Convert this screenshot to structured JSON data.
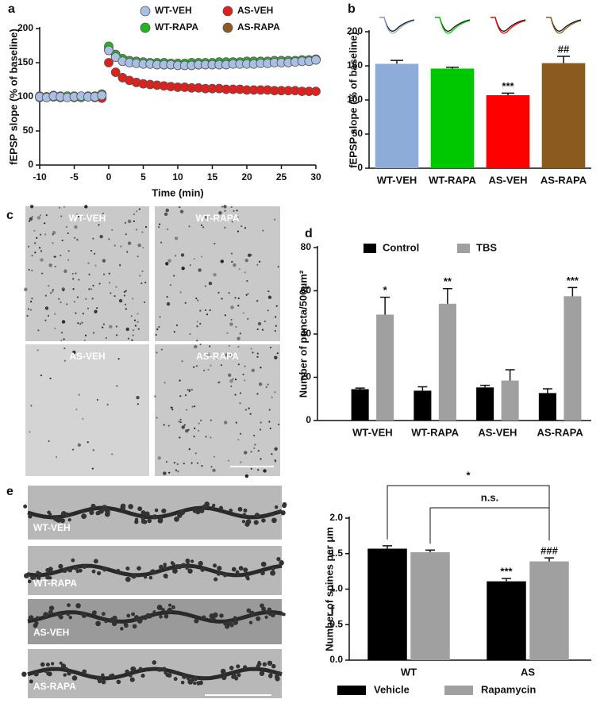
{
  "chart_data": [
    {
      "type": "scatter",
      "panel": "a",
      "xlabel": "Time (min)",
      "ylabel": "fEPSP slope (% of baseline)",
      "x": [
        -10,
        -9,
        -8,
        -7,
        -6,
        -5,
        -4,
        -3,
        -2,
        -1,
        0,
        1,
        2,
        3,
        4,
        5,
        6,
        7,
        8,
        9,
        10,
        11,
        12,
        13,
        14,
        15,
        16,
        17,
        18,
        19,
        20,
        21,
        22,
        23,
        24,
        25,
        26,
        27,
        28,
        29,
        30
      ],
      "xlim": [
        -10,
        30
      ],
      "xticks": [
        -10,
        -5,
        0,
        5,
        10,
        15,
        20,
        25,
        30
      ],
      "ylim": [
        0,
        200
      ],
      "yticks": [
        0,
        50,
        100,
        150,
        200
      ],
      "legend": "top",
      "series": [
        {
          "name": "WT-VEH",
          "color": "#a9bfe3",
          "values": [
            100,
            99,
            101,
            100,
            99,
            100,
            101,
            100,
            100,
            102,
            168,
            158,
            152,
            150,
            149,
            148,
            148,
            147,
            147,
            147,
            146,
            146,
            146,
            147,
            147,
            147,
            147,
            147,
            148,
            148,
            148,
            148,
            149,
            149,
            150,
            150,
            150,
            151,
            152,
            152,
            154
          ]
        },
        {
          "name": "WT-RAPA",
          "color": "#22b522",
          "values": [
            99,
            100,
            100,
            99,
            101,
            100,
            99,
            100,
            101,
            104,
            174,
            162,
            156,
            153,
            152,
            151,
            150,
            150,
            150,
            149,
            149,
            149,
            150,
            150,
            150,
            150,
            151,
            151,
            151,
            151,
            152,
            152,
            152,
            152,
            153,
            153,
            153,
            153,
            154,
            154,
            155
          ]
        },
        {
          "name": "AS-VEH",
          "color": "#e0201c",
          "values": [
            101,
            100,
            102,
            101,
            100,
            101,
            100,
            101,
            99,
            98,
            150,
            136,
            128,
            124,
            121,
            119,
            118,
            117,
            116,
            115,
            114,
            114,
            113,
            113,
            112,
            112,
            112,
            111,
            111,
            111,
            110,
            110,
            110,
            110,
            109,
            109,
            109,
            109,
            108,
            108,
            108
          ]
        },
        {
          "name": "AS-RAPA",
          "color": "#8c5a22",
          "values": [
            100,
            99,
            100,
            100,
            100,
            99,
            100,
            100,
            100,
            101,
            170,
            160,
            154,
            152,
            150,
            149,
            148,
            148,
            147,
            147,
            147,
            147,
            147,
            147,
            148,
            148,
            148,
            148,
            149,
            149,
            149,
            150,
            150,
            150,
            151,
            151,
            152,
            152,
            153,
            153,
            155
          ]
        }
      ]
    },
    {
      "type": "bar",
      "panel": "b",
      "ylabel": "fEPSP slope (% of baseline)",
      "categories": [
        "WT-VEH",
        "WT-RAPA",
        "AS-VEH",
        "AS-RAPA"
      ],
      "values": [
        153,
        146,
        107,
        154
      ],
      "errors": [
        5,
        2,
        3,
        10
      ],
      "colors": [
        "#8eacd8",
        "#00c800",
        "#ff0000",
        "#8b5a1e"
      ],
      "significance": [
        null,
        null,
        "***",
        "##"
      ],
      "ylim": [
        0,
        200
      ],
      "yticks": [
        0,
        50,
        100,
        150,
        200
      ]
    },
    {
      "type": "grouped_bar",
      "panel": "d",
      "ylabel": "Number of puncta/500μm²",
      "legend": "top",
      "categories": [
        "WT-VEH",
        "WT-RAPA",
        "AS-VEH",
        "AS-RAPA"
      ],
      "ylim": [
        0,
        80
      ],
      "yticks": [
        0,
        20,
        40,
        60,
        80
      ],
      "series": [
        {
          "name": "Control",
          "color": "#000000",
          "values": [
            14.5,
            13.8,
            15.3,
            12.7
          ],
          "errors": [
            0.5,
            1.8,
            1,
            2
          ],
          "significance": [
            null,
            null,
            null,
            null
          ]
        },
        {
          "name": "TBS",
          "color": "#a0a0a0",
          "values": [
            49,
            54,
            18.5,
            57.5
          ],
          "errors": [
            8,
            7,
            5,
            4
          ],
          "significance": [
            "*",
            "**",
            null,
            "***"
          ]
        }
      ]
    },
    {
      "type": "grouped_bar",
      "panel": "f",
      "ylabel": "Number of spines per μm",
      "legend": "bottom",
      "categories": [
        "WT",
        "AS"
      ],
      "ylim": [
        0,
        2
      ],
      "yticks": [
        {
          "value": 0,
          "label": "0.0"
        },
        {
          "value": 0.5,
          "label": "0.5"
        },
        {
          "value": 1,
          "label": "1.0"
        },
        {
          "value": 1.5,
          "label": "1.5"
        },
        {
          "value": 2,
          "label": "2.0"
        }
      ],
      "annotations": [
        "*",
        "n.s."
      ],
      "series": [
        {
          "name": "Vehicle",
          "color": "#000000",
          "values": [
            1.57,
            1.11
          ],
          "errors": [
            0.04,
            0.04
          ],
          "significance": [
            null,
            "***"
          ]
        },
        {
          "name": "Rapamycin",
          "color": "#a0a0a0",
          "values": [
            1.52,
            1.39
          ],
          "errors": [
            0.03,
            0.05
          ],
          "significance": [
            null,
            "###"
          ]
        }
      ]
    }
  ],
  "micrographs": {
    "panel": "c",
    "labels": [
      "WT-VEH",
      "WT-RAPA",
      "AS-VEH",
      "AS-RAPA"
    ]
  },
  "dendrites": {
    "panel": "e",
    "labels": [
      "WT-VEH",
      "WT-RAPA",
      "AS-VEH",
      "AS-RAPA"
    ]
  }
}
